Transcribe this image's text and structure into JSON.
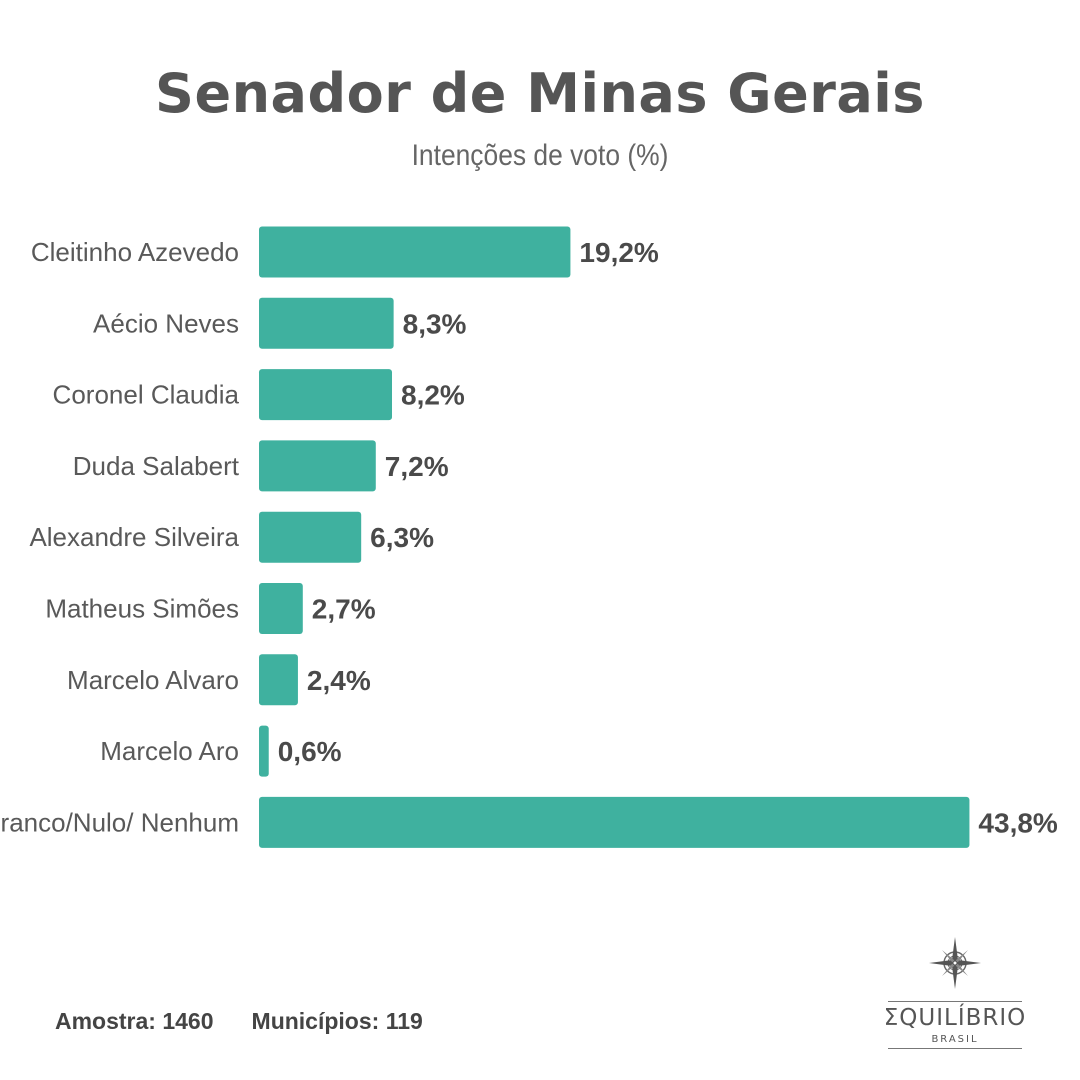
{
  "chart_data": {
    "type": "bar",
    "orientation": "horizontal",
    "title": "Senador de Minas Gerais",
    "subtitle": "Intenções de voto (%)",
    "categories": [
      "Cleitinho Azevedo",
      "Aécio Neves",
      "Coronel Claudia",
      "Duda Salabert",
      "Alexandre Silveira",
      "Matheus Simões",
      "Marcelo Alvaro",
      "Marcelo Aro",
      "Branco/Nulo/ Nenhum"
    ],
    "values": [
      19.2,
      8.3,
      8.2,
      7.2,
      6.3,
      2.7,
      2.4,
      0.6,
      43.8
    ],
    "value_labels": [
      "19,2%",
      "8,3%",
      "8,2%",
      "7,2%",
      "6,3%",
      "2,7%",
      "2,4%",
      "0,6%",
      "43,8%"
    ],
    "bar_color": "#3fb19f",
    "grid": false,
    "legend": "none"
  },
  "footer": {
    "sample": "Amostra: 1460",
    "municipalities": "Municípios: 119"
  },
  "logo": {
    "icon": "compass-rose-icon",
    "name": "ΣQUILÍBRIO",
    "sub": "BRASIL"
  }
}
